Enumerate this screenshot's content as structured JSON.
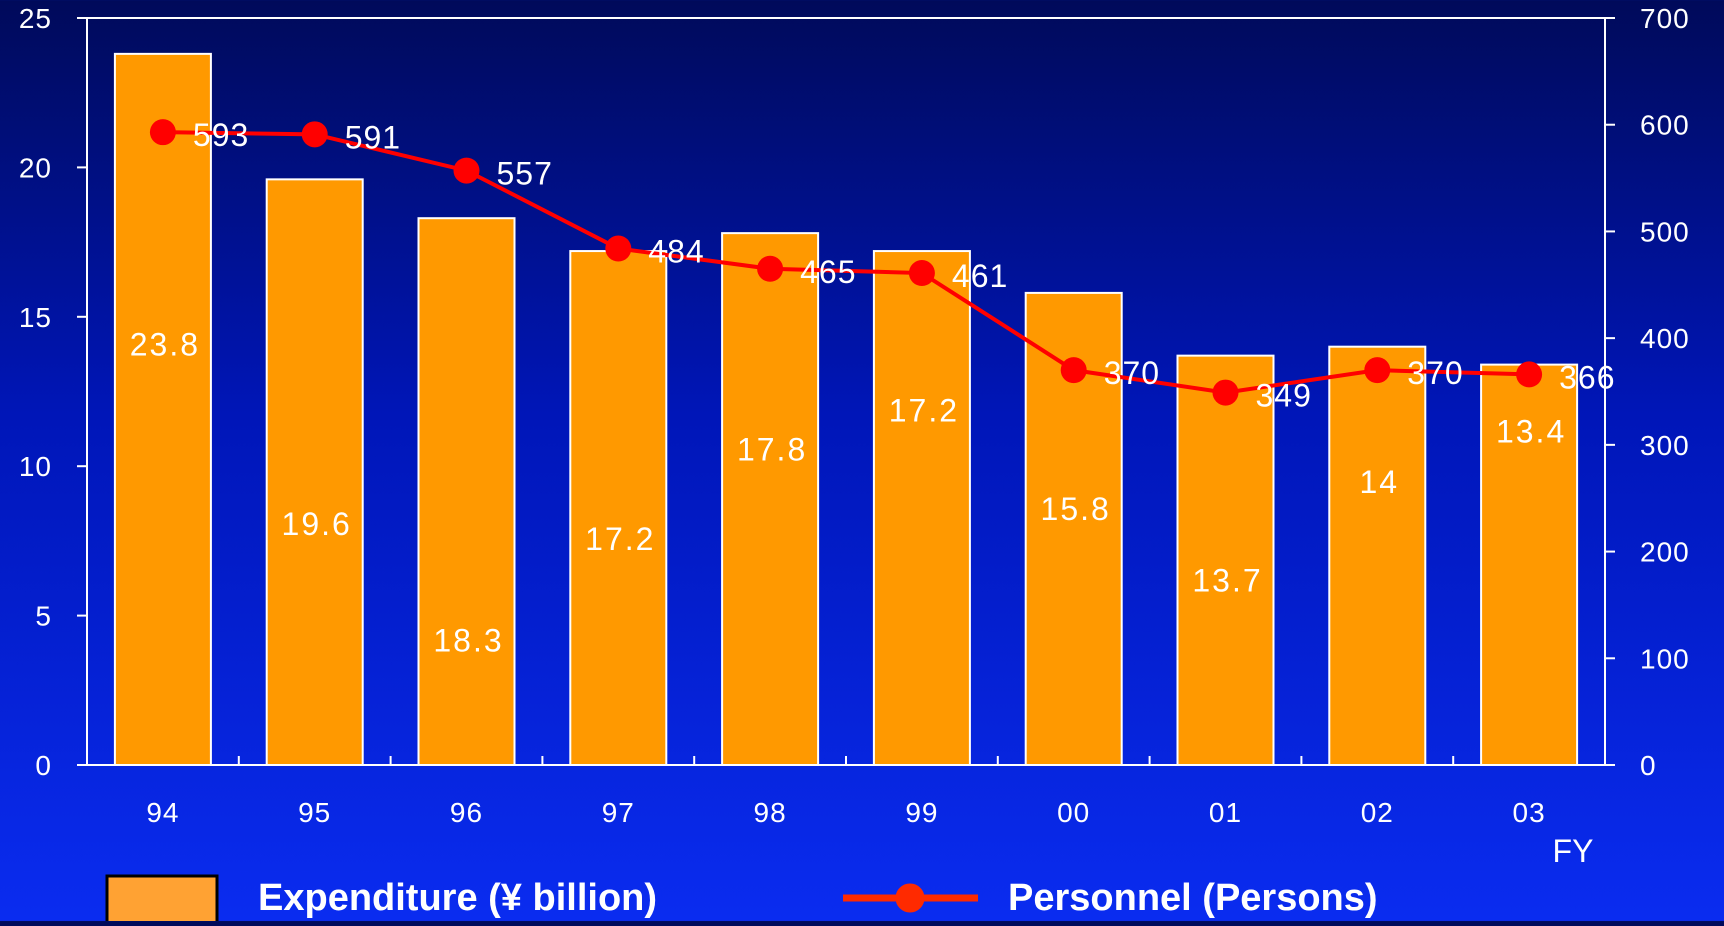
{
  "chart_data": {
    "type": "bar",
    "categories": [
      "94",
      "95",
      "96",
      "97",
      "98",
      "99",
      "00",
      "01",
      "02",
      "03"
    ],
    "series": [
      {
        "name": "Expenditure (¥ billion)",
        "type": "bar",
        "axis": "left",
        "values": [
          23.8,
          19.6,
          18.3,
          17.2,
          17.8,
          17.2,
          15.8,
          13.7,
          14,
          13.4
        ],
        "labels": [
          "23.8",
          "19.6",
          "18.3",
          "17.2",
          "17.8",
          "17.2",
          "15.8",
          "13.7",
          "14",
          "13.4"
        ],
        "label_y": [
          14.1,
          8.1,
          4.2,
          7.6,
          10.6,
          11.9,
          8.6,
          6.2,
          9.5,
          11.2
        ],
        "color": "#ff9900"
      },
      {
        "name": "Personnel (Persons)",
        "type": "line",
        "axis": "right",
        "values": [
          593,
          591,
          557,
          484,
          465,
          461,
          370,
          349,
          370,
          366
        ],
        "labels": [
          "593",
          "591",
          "557",
          "484",
          "465",
          "461",
          "370",
          "349",
          "370",
          "366"
        ],
        "color": "#ff0000"
      }
    ],
    "y_left": {
      "range": [
        0,
        25
      ],
      "ticks": [
        "0",
        "5",
        "10",
        "15",
        "20",
        "25"
      ]
    },
    "y_right": {
      "range": [
        0,
        700
      ],
      "ticks": [
        "0",
        "100",
        "200",
        "300",
        "400",
        "500",
        "600",
        "700"
      ]
    },
    "xlabel": "FY",
    "legend": "bottom",
    "grid": false
  }
}
